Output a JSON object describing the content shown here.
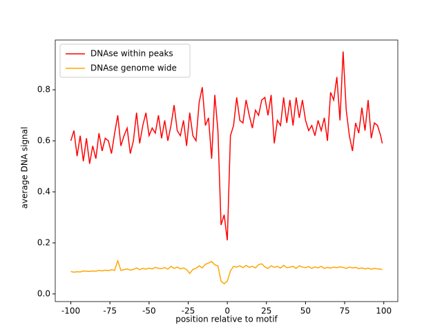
{
  "chart_data": {
    "type": "line",
    "xlabel": "position relative to motif",
    "ylabel": "average DNA signal",
    "x": [
      -100,
      -98,
      -96,
      -94,
      -92,
      -90,
      -88,
      -86,
      -84,
      -82,
      -80,
      -78,
      -76,
      -74,
      -72,
      -70,
      -68,
      -66,
      -64,
      -62,
      -60,
      -58,
      -56,
      -54,
      -52,
      -50,
      -48,
      -46,
      -44,
      -42,
      -40,
      -38,
      -36,
      -34,
      -32,
      -30,
      -28,
      -26,
      -24,
      -22,
      -20,
      -18,
      -16,
      -14,
      -12,
      -10,
      -8,
      -6,
      -4,
      -2,
      0,
      2,
      4,
      6,
      8,
      10,
      12,
      14,
      16,
      18,
      20,
      22,
      24,
      26,
      28,
      30,
      32,
      34,
      36,
      38,
      40,
      42,
      44,
      46,
      48,
      50,
      52,
      54,
      56,
      58,
      60,
      62,
      64,
      66,
      68,
      70,
      72,
      74,
      76,
      78,
      80,
      82,
      84,
      86,
      88,
      90,
      92,
      94,
      96,
      98,
      99
    ],
    "series": [
      {
        "name": "DNAse within peaks",
        "color": "#ff0000",
        "values": [
          0.6,
          0.64,
          0.54,
          0.62,
          0.52,
          0.61,
          0.51,
          0.58,
          0.53,
          0.63,
          0.56,
          0.61,
          0.6,
          0.55,
          0.63,
          0.7,
          0.58,
          0.62,
          0.65,
          0.55,
          0.6,
          0.71,
          0.59,
          0.66,
          0.71,
          0.62,
          0.65,
          0.63,
          0.7,
          0.61,
          0.68,
          0.6,
          0.66,
          0.74,
          0.64,
          0.62,
          0.68,
          0.58,
          0.71,
          0.62,
          0.6,
          0.75,
          0.81,
          0.66,
          0.69,
          0.53,
          0.78,
          0.64,
          0.27,
          0.31,
          0.21,
          0.62,
          0.66,
          0.77,
          0.68,
          0.67,
          0.76,
          0.7,
          0.65,
          0.72,
          0.7,
          0.76,
          0.77,
          0.7,
          0.78,
          0.59,
          0.68,
          0.66,
          0.77,
          0.67,
          0.76,
          0.66,
          0.77,
          0.69,
          0.76,
          0.68,
          0.64,
          0.66,
          0.62,
          0.68,
          0.64,
          0.69,
          0.6,
          0.79,
          0.76,
          0.85,
          0.68,
          0.95,
          0.72,
          0.62,
          0.56,
          0.67,
          0.63,
          0.73,
          0.64,
          0.76,
          0.61,
          0.67,
          0.66,
          0.62,
          0.59
        ]
      },
      {
        "name": "DNAse genome wide",
        "color": "#ffa500",
        "values": [
          0.088,
          0.085,
          0.087,
          0.086,
          0.09,
          0.089,
          0.088,
          0.09,
          0.089,
          0.092,
          0.09,
          0.093,
          0.091,
          0.095,
          0.092,
          0.13,
          0.092,
          0.095,
          0.098,
          0.093,
          0.096,
          0.102,
          0.095,
          0.1,
          0.097,
          0.101,
          0.098,
          0.104,
          0.1,
          0.099,
          0.103,
          0.097,
          0.108,
          0.1,
          0.105,
          0.098,
          0.102,
          0.095,
          0.08,
          0.096,
          0.1,
          0.11,
          0.102,
          0.116,
          0.121,
          0.127,
          0.114,
          0.11,
          0.05,
          0.04,
          0.05,
          0.09,
          0.108,
          0.105,
          0.11,
          0.103,
          0.112,
          0.104,
          0.108,
          0.102,
          0.115,
          0.118,
          0.106,
          0.1,
          0.11,
          0.104,
          0.108,
          0.101,
          0.112,
          0.103,
          0.105,
          0.108,
          0.1,
          0.11,
          0.105,
          0.103,
          0.107,
          0.1,
          0.106,
          0.102,
          0.108,
          0.1,
          0.104,
          0.101,
          0.105,
          0.103,
          0.106,
          0.104,
          0.1,
          0.105,
          0.102,
          0.104,
          0.099,
          0.102,
          0.098,
          0.101,
          0.097,
          0.1,
          0.098,
          0.097,
          0.095
        ]
      }
    ],
    "xlim": [
      -109.95,
      108.95
    ],
    "ylim": [
      -0.03,
      0.995
    ],
    "xticks": [
      -100,
      -75,
      -50,
      -25,
      0,
      25,
      50,
      75,
      100
    ],
    "yticks": [
      {
        "value": 0,
        "label": "0.0"
      },
      0.2,
      0.4,
      0.6,
      0.8
    ],
    "legend": "upper left"
  }
}
